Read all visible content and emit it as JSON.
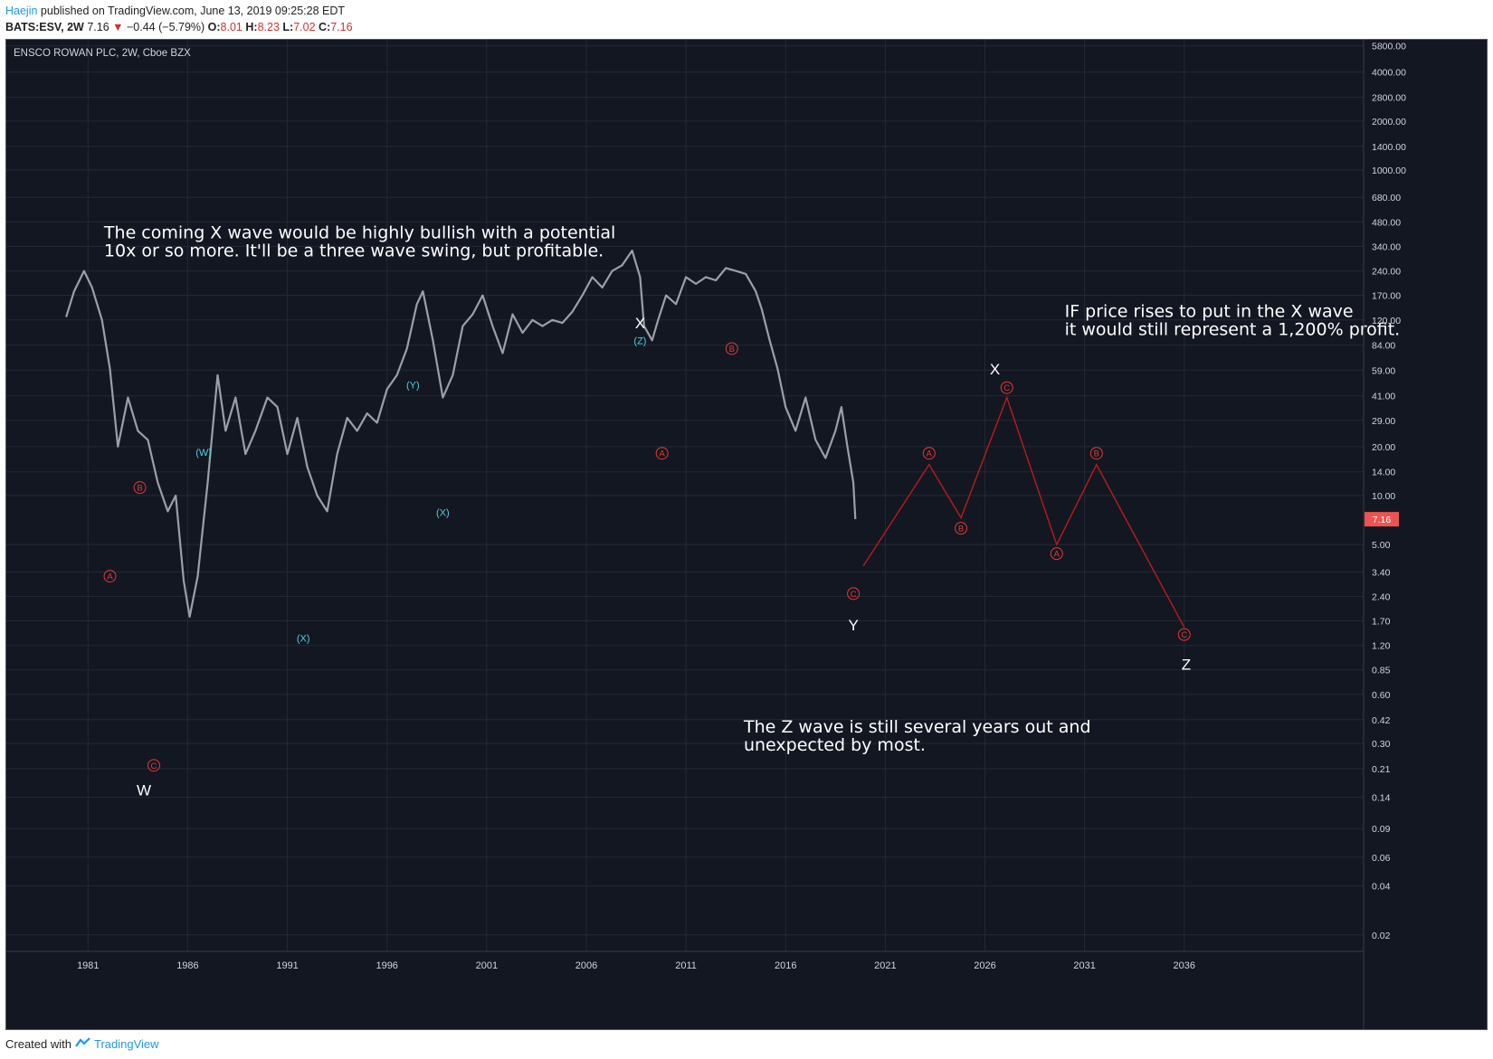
{
  "header": {
    "author": "Haejin",
    "published": "published on TradingView.com, June 13, 2019 09:25:28 EDT",
    "symbol": "BATS:ESV, 2W",
    "last": "7.16",
    "change": "−0.44 (−5.79%)",
    "o_label": "O:",
    "o_value": "8.01",
    "h_label": "H:",
    "h_value": "8.23",
    "l_label": "L:",
    "l_value": "7.02",
    "c_label": "C:",
    "c_value": "7.16"
  },
  "footer": {
    "created_with": "Created with",
    "brand": "TradingView"
  },
  "colors": {
    "background": "#131722",
    "grid": "#242836",
    "axis_text": "#d1d4dc",
    "candle": "#9aa0a6",
    "wave_red": "#e53935",
    "wave_cyan": "#4dd0e1",
    "white": "#ffffff",
    "price_tag": "#ef5350"
  },
  "chart_data": {
    "type": "line",
    "title": "ENSCO ROWAN PLC, 2W, Cboe BZX",
    "y_scale": "log",
    "ylim": [
      0.018,
      6000
    ],
    "xlim": [
      1976.9,
      2045.0
    ],
    "grid": true,
    "y_ticks": [
      {
        "v": 5800,
        "t": "5800.00"
      },
      {
        "v": 4000,
        "t": "4000.00"
      },
      {
        "v": 2800,
        "t": "2800.00"
      },
      {
        "v": 2000,
        "t": "2000.00"
      },
      {
        "v": 1400,
        "t": "1400.00"
      },
      {
        "v": 1000,
        "t": "1000.00"
      },
      {
        "v": 680,
        "t": "680.00"
      },
      {
        "v": 480,
        "t": "480.00"
      },
      {
        "v": 340,
        "t": "340.00"
      },
      {
        "v": 240,
        "t": "240.00"
      },
      {
        "v": 170,
        "t": "170.00"
      },
      {
        "v": 120,
        "t": "120.00"
      },
      {
        "v": 84,
        "t": "84.00"
      },
      {
        "v": 59,
        "t": "59.00"
      },
      {
        "v": 41,
        "t": "41.00"
      },
      {
        "v": 29,
        "t": "29.00"
      },
      {
        "v": 20,
        "t": "20.00"
      },
      {
        "v": 14,
        "t": "14.00"
      },
      {
        "v": 10,
        "t": "10.00"
      },
      {
        "v": 5,
        "t": "5.00"
      },
      {
        "v": 3.4,
        "t": "3.40"
      },
      {
        "v": 2.4,
        "t": "2.40"
      },
      {
        "v": 1.7,
        "t": "1.70"
      },
      {
        "v": 1.2,
        "t": "1.20"
      },
      {
        "v": 0.85,
        "t": "0.85"
      },
      {
        "v": 0.6,
        "t": "0.60"
      },
      {
        "v": 0.42,
        "t": "0.42"
      },
      {
        "v": 0.3,
        "t": "0.30"
      },
      {
        "v": 0.21,
        "t": "0.21"
      },
      {
        "v": 0.14,
        "t": "0.14"
      },
      {
        "v": 0.09,
        "t": "0.09"
      },
      {
        "v": 0.06,
        "t": "0.06"
      },
      {
        "v": 0.04,
        "t": "0.04"
      },
      {
        "v": 0.02,
        "t": "0.02"
      }
    ],
    "x_ticks": [
      {
        "v": 1981,
        "t": "1981"
      },
      {
        "v": 1986,
        "t": "1986"
      },
      {
        "v": 1991,
        "t": "1991"
      },
      {
        "v": 1996,
        "t": "1996"
      },
      {
        "v": 2001,
        "t": "2001"
      },
      {
        "v": 2006,
        "t": "2006"
      },
      {
        "v": 2011,
        "t": "2011"
      },
      {
        "v": 2016,
        "t": "2016"
      },
      {
        "v": 2021,
        "t": "2021"
      },
      {
        "v": 2026,
        "t": "2026"
      },
      {
        "v": 2031,
        "t": "2031"
      },
      {
        "v": 2036,
        "t": "2036"
      }
    ],
    "last_price": {
      "value": 7.16,
      "label": "7.16"
    },
    "price_series": {
      "name": "",
      "points": [
        [
          1979.9,
          125
        ],
        [
          1980.3,
          180
        ],
        [
          1980.8,
          240
        ],
        [
          1981.2,
          190
        ],
        [
          1981.7,
          120
        ],
        [
          1982.1,
          60
        ],
        [
          1982.5,
          20
        ],
        [
          1983.0,
          40
        ],
        [
          1983.5,
          25
        ],
        [
          1984.0,
          22
        ],
        [
          1984.5,
          12
        ],
        [
          1985.0,
          8
        ],
        [
          1985.4,
          10
        ],
        [
          1985.8,
          3
        ],
        [
          1986.1,
          1.8
        ],
        [
          1986.5,
          3.2
        ],
        [
          1987.0,
          12
        ],
        [
          1987.5,
          55
        ],
        [
          1987.9,
          25
        ],
        [
          1988.4,
          40
        ],
        [
          1988.9,
          18
        ],
        [
          1989.4,
          25
        ],
        [
          1990.0,
          40
        ],
        [
          1990.5,
          35
        ],
        [
          1991.0,
          18
        ],
        [
          1991.5,
          30
        ],
        [
          1992.0,
          15
        ],
        [
          1992.5,
          10
        ],
        [
          1993.0,
          8
        ],
        [
          1993.5,
          18
        ],
        [
          1994.0,
          30
        ],
        [
          1994.5,
          25
        ],
        [
          1995.0,
          32
        ],
        [
          1995.5,
          28
        ],
        [
          1996.0,
          45
        ],
        [
          1996.5,
          55
        ],
        [
          1997.0,
          80
        ],
        [
          1997.5,
          150
        ],
        [
          1997.8,
          180
        ],
        [
          1998.3,
          90
        ],
        [
          1998.8,
          40
        ],
        [
          1999.3,
          55
        ],
        [
          1999.8,
          110
        ],
        [
          2000.3,
          130
        ],
        [
          2000.8,
          170
        ],
        [
          2001.3,
          110
        ],
        [
          2001.8,
          75
        ],
        [
          2002.3,
          130
        ],
        [
          2002.8,
          100
        ],
        [
          2003.3,
          120
        ],
        [
          2003.8,
          110
        ],
        [
          2004.3,
          120
        ],
        [
          2004.8,
          115
        ],
        [
          2005.3,
          135
        ],
        [
          2005.8,
          170
        ],
        [
          2006.3,
          220
        ],
        [
          2006.8,
          190
        ],
        [
          2007.3,
          240
        ],
        [
          2007.8,
          260
        ],
        [
          2008.3,
          320
        ],
        [
          2008.7,
          220
        ],
        [
          2008.9,
          110
        ],
        [
          2009.3,
          90
        ],
        [
          2009.6,
          120
        ],
        [
          2010.0,
          170
        ],
        [
          2010.5,
          150
        ],
        [
          2011.0,
          220
        ],
        [
          2011.5,
          200
        ],
        [
          2012.0,
          220
        ],
        [
          2012.5,
          210
        ],
        [
          2013.0,
          250
        ],
        [
          2013.5,
          240
        ],
        [
          2014.0,
          230
        ],
        [
          2014.5,
          180
        ],
        [
          2014.8,
          140
        ],
        [
          2015.2,
          90
        ],
        [
          2015.6,
          60
        ],
        [
          2016.0,
          35
        ],
        [
          2016.5,
          25
        ],
        [
          2017.0,
          40
        ],
        [
          2017.5,
          22
        ],
        [
          2018.0,
          17
        ],
        [
          2018.5,
          25
        ],
        [
          2018.8,
          35
        ],
        [
          2019.1,
          20
        ],
        [
          2019.4,
          12
        ],
        [
          2019.5,
          7.16
        ]
      ]
    },
    "projection": {
      "name": "",
      "points": [
        [
          2019.9,
          3.7
        ],
        [
          2023.2,
          15.5
        ],
        [
          2024.8,
          7.3
        ],
        [
          2027.1,
          40
        ],
        [
          2029.6,
          5.0
        ],
        [
          2031.6,
          15.5
        ],
        [
          2036.0,
          1.55
        ]
      ]
    },
    "wave_labels": [
      {
        "x": 1984.3,
        "y": 0.22,
        "t": "C",
        "style": "red-circle"
      },
      {
        "x": 1983.8,
        "y": 0.155,
        "t": "W",
        "style": "white-letter"
      },
      {
        "x": 1982.1,
        "y": 3.2,
        "t": "A",
        "style": "red-circle"
      },
      {
        "x": 1983.6,
        "y": 11.2,
        "t": "B",
        "style": "red-circle"
      },
      {
        "x": 1986.8,
        "y": 18.5,
        "t": "(W)",
        "style": "cyan"
      },
      {
        "x": 1991.8,
        "y": 1.33,
        "t": "(X)",
        "style": "cyan"
      },
      {
        "x": 1997.3,
        "y": 48,
        "t": "(Y)",
        "style": "cyan"
      },
      {
        "x": 1998.8,
        "y": 7.9,
        "t": "(X)",
        "style": "cyan"
      },
      {
        "x": 2008.7,
        "y": 90,
        "t": "(Z)",
        "style": "cyan"
      },
      {
        "x": 2008.7,
        "y": 115,
        "t": "X",
        "style": "white-letter"
      },
      {
        "x": 2009.8,
        "y": 18.2,
        "t": "A",
        "style": "red-circle"
      },
      {
        "x": 2013.3,
        "y": 80,
        "t": "B",
        "style": "red-circle"
      },
      {
        "x": 2019.4,
        "y": 2.5,
        "t": "C",
        "style": "red-circle"
      },
      {
        "x": 2019.4,
        "y": 1.6,
        "t": "Y",
        "style": "white-letter"
      },
      {
        "x": 2023.2,
        "y": 18.2,
        "t": "A",
        "style": "red-circle"
      },
      {
        "x": 2024.8,
        "y": 6.3,
        "t": "B",
        "style": "red-circle"
      },
      {
        "x": 2027.1,
        "y": 46,
        "t": "C",
        "style": "red-circle"
      },
      {
        "x": 2026.5,
        "y": 60,
        "t": "X",
        "style": "white-letter"
      },
      {
        "x": 2029.6,
        "y": 4.4,
        "t": "A",
        "style": "red-circle"
      },
      {
        "x": 2031.6,
        "y": 18.2,
        "t": "B",
        "style": "red-circle"
      },
      {
        "x": 2036.0,
        "y": 1.4,
        "t": "C",
        "style": "red-circle"
      },
      {
        "x": 2036.1,
        "y": 0.92,
        "t": "Z",
        "style": "white-letter"
      }
    ],
    "annotations": [
      {
        "x": 1981.8,
        "y": 380,
        "lines": [
          "The coming X wave would be highly bullish with a potential",
          "10x or so more. It'll be a three wave swing, but profitable."
        ]
      },
      {
        "x": 2030.0,
        "y": 125,
        "lines": [
          "IF price rises to put in the X wave",
          "it would still represent a 1,200% profit."
        ]
      },
      {
        "x": 2013.9,
        "y": 0.35,
        "lines": [
          "The Z wave is still several years out and",
          "unexpected by most."
        ]
      }
    ]
  }
}
